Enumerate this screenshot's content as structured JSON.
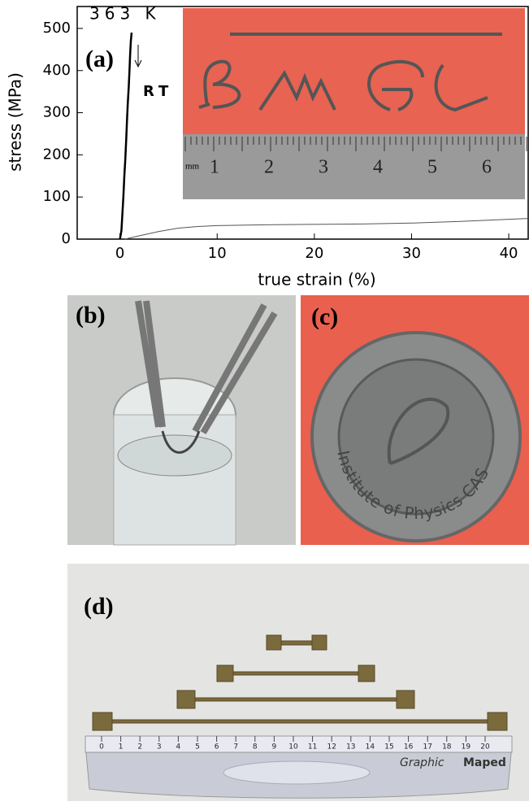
{
  "chart_data": {
    "type": "line",
    "xlabel": "true strain (%)",
    "ylabel": "stress (MPa)",
    "xlim": [
      -4.4,
      42
    ],
    "ylim": [
      0,
      552
    ],
    "xticks": [
      0,
      10,
      20,
      30,
      40
    ],
    "yticks": [
      0,
      100,
      200,
      300,
      400,
      500
    ],
    "series": [
      {
        "name": "363 K",
        "color": "#000000",
        "x": [
          0,
          0.15,
          0.25,
          0.35,
          0.45,
          0.55,
          0.65,
          0.72,
          0.8,
          0.9,
          0.98,
          1.05,
          1.12,
          1.2
        ],
        "values": [
          0,
          20,
          60,
          100,
          150,
          190,
          240,
          280,
          320,
          360,
          400,
          440,
          470,
          490
        ]
      },
      {
        "name": "RT",
        "color": "#555555",
        "x": [
          0.5,
          2,
          4,
          6,
          8,
          10,
          15,
          20,
          25,
          30,
          35,
          40,
          42
        ],
        "values": [
          0,
          8,
          18,
          26,
          30,
          32,
          34,
          35,
          36,
          38,
          42,
          47,
          49
        ]
      }
    ],
    "panel_label": "(a)"
  },
  "panels": {
    "b": "(b)",
    "c": "(c)",
    "d": "(d)"
  },
  "photos": {
    "a_ruler": [
      1,
      2,
      3,
      4,
      5,
      6
    ],
    "a_ruler_unit": "mm",
    "c_coin_text": "Institute of Physics CAS",
    "d_ruler": [
      0,
      1,
      2,
      3,
      4,
      5,
      6,
      7,
      8,
      9,
      10,
      11,
      12,
      13,
      14,
      15,
      16,
      17,
      18,
      19,
      20
    ],
    "d_brand_1": "Graphic",
    "d_brand_2": "Maped"
  }
}
